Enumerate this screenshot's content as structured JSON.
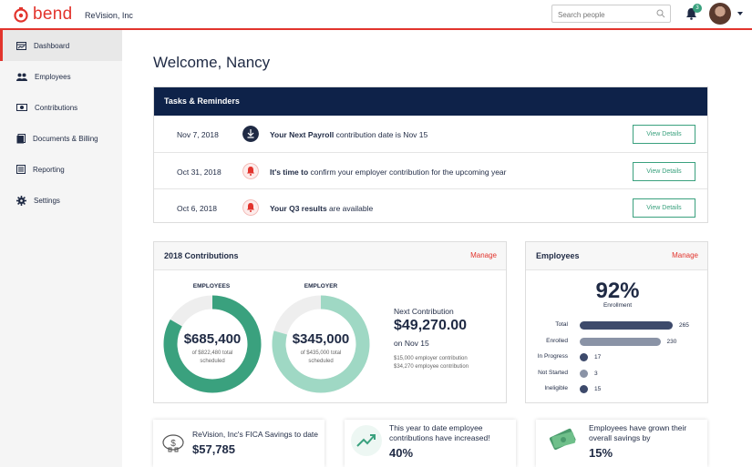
{
  "header": {
    "brand": "bend",
    "company": "ReVision, Inc",
    "search_placeholder": "Search people",
    "notification_count": "3"
  },
  "sidebar": {
    "items": [
      {
        "label": "Dashboard"
      },
      {
        "label": "Employees"
      },
      {
        "label": "Contributions"
      },
      {
        "label": "Documents & Billing"
      },
      {
        "label": "Reporting"
      },
      {
        "label": "Settings"
      }
    ]
  },
  "welcome": "Welcome, Nancy",
  "tasks": {
    "title": "Tasks & Reminders",
    "rows": [
      {
        "date": "Nov 7, 2018",
        "bold": "Your Next Payroll",
        "text": " contribution date is Nov 15",
        "button": "View Details"
      },
      {
        "date": "Oct 31, 2018",
        "bold": "It's time to",
        "text": " confirm your employer contribution for the upcoming year",
        "button": "View Details"
      },
      {
        "date": "Oct 6, 2018",
        "bold": "Your Q3 results",
        "text": " are available",
        "button": "View Details"
      }
    ]
  },
  "contributions": {
    "title": "2018 Contributions",
    "manage": "Manage",
    "employees": {
      "label": "EMPLOYEES",
      "amount": "$685,400",
      "sub1": "of $822,480 total",
      "sub2": "scheduled",
      "fraction": 0.833
    },
    "employer": {
      "label": "EMPLOYER",
      "amount": "$345,000",
      "sub1": "of $435,000 total",
      "sub2": "scheduled",
      "fraction": 0.793
    },
    "next_label": "Next Contribution",
    "next_amount": "$49,270.00",
    "next_date": "on Nov 15",
    "next_employer": "$15,000 employer contribution",
    "next_employee": "$34,270 employee contribution"
  },
  "employees_panel": {
    "title": "Employees",
    "manage": "Manage",
    "enrollment_pct": "92%",
    "enrollment_label": "Enrollment",
    "max": 265,
    "rows": [
      {
        "label": "Total",
        "value": 265,
        "display": "265",
        "color": "#3d4a6b"
      },
      {
        "label": "Enrolled",
        "value": 230,
        "display": "230",
        "color": "#8a93a6"
      },
      {
        "label": "In Progress",
        "value": 17,
        "display": "17",
        "color": "#3d4a6b"
      },
      {
        "label": "Not Started",
        "value": 3,
        "display": "3",
        "color": "#8a93a6"
      },
      {
        "label": "Ineligible",
        "value": 15,
        "display": "15",
        "color": "#3d4a6b"
      }
    ]
  },
  "stats": [
    {
      "text": "ReVision, Inc's FICA Savings to date",
      "value": "$57,785"
    },
    {
      "text": "This year to date employee contributions have increased!",
      "value": "40%"
    },
    {
      "text": "Employees have grown their overall savings by",
      "value": "15%"
    }
  ],
  "colors": {
    "brand": "#e2342d",
    "navy": "#0e2249",
    "green": "#3aa17e",
    "light_green": "#9fd8c4"
  }
}
